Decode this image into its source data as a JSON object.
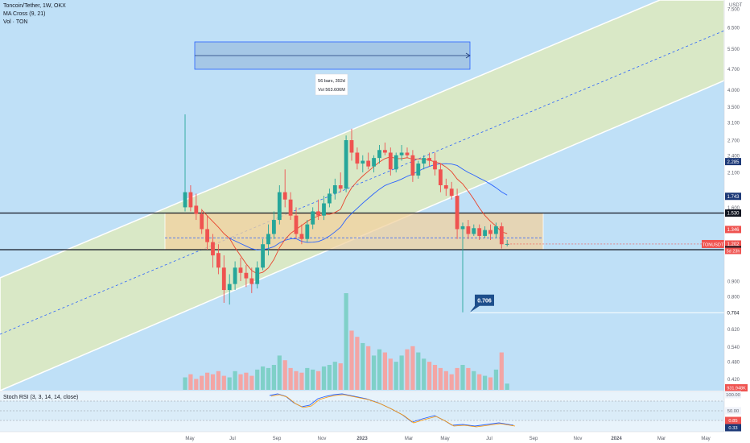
{
  "header": {
    "symbol_line": "Toncoin/Tether, 1W, OKX",
    "indicator_1": "MA Cross (9, 21)",
    "indicator_2": "Vol · TON",
    "rsi_label": "Stoch RSI (3, 3, 14, 14, close)",
    "unit": "USDT"
  },
  "colors": {
    "up": "#26a69a",
    "down": "#ef5350",
    "channel_fill": "#d9e8c6",
    "plot_bg": "#bfe0f7",
    "zone_fill": "#f1d29f",
    "ma_fast": "#e8452e",
    "ma_slow": "#2962ff",
    "rsi_k": "#2962ff",
    "rsi_d": "#ff9800"
  },
  "chart_data": {
    "type": "candlestick",
    "log_scale": true,
    "ylim": [
      0.34,
      8.5
    ],
    "price_axis_ticks": [
      "7.500",
      "6.500",
      "5.500",
      "4.700",
      "4.000",
      "3.500",
      "3.100",
      "2.700",
      "2.400",
      "2.100",
      "1.600",
      "1.350",
      "0.900",
      "0.800",
      "0.620",
      "0.540",
      "0.480",
      "0.420",
      "0.370"
    ],
    "time_axis_ticks": [
      "May",
      "Jul",
      "Sep",
      "Nov",
      "2023",
      "Mar",
      "May",
      "Jul",
      "Sep",
      "Nov",
      "2024",
      "Mar",
      "May"
    ],
    "horizontal_levels": [
      1.53,
      1.15,
      0.704
    ],
    "price_labels": [
      {
        "value": 7.5,
        "text": "7.500",
        "color": "#f0f3fa",
        "fg": "#5d606b",
        "y": 7.5
      },
      {
        "value": 2.285,
        "text": "2.285",
        "color": "#1e3a78",
        "fg": "#ffffff",
        "y": 2.285
      },
      {
        "value": 1.743,
        "text": "1.743",
        "color": "#1e3a78",
        "fg": "#ffffff",
        "y": 1.743
      },
      {
        "value": 1.53,
        "text": "1.530",
        "color": "#131722",
        "fg": "#ffffff",
        "y": 1.53
      },
      {
        "value": 1.346,
        "text": "1.346",
        "color": "#ef5350",
        "fg": "#ffffff",
        "y": 1.346
      },
      {
        "value": 1.202,
        "text": "1.202",
        "color": "#ef5350",
        "fg": "#ffffff",
        "y": 1.202
      },
      {
        "value": 1.15,
        "text": "1.150",
        "color": "#131722",
        "fg": "#ffffff",
        "y": 1.15
      },
      {
        "value": 0.704,
        "text": "0.704",
        "color": "#ffffff",
        "fg": "#131722",
        "y": 0.704
      }
    ],
    "symbol_tag": "TONUSDT",
    "countdown_tag": "5d 23h",
    "volume_tag": "931.948K",
    "annotation_box": {
      "line1": "56 bars, 392d",
      "line2": "Vol 563.606M"
    },
    "callout": "0.706",
    "rsi_levels": [
      "100.00",
      "50.00",
      "0.85",
      "0.33"
    ],
    "candles": [
      {
        "o": 1.6,
        "h": 3.3,
        "l": 1.55,
        "c": 1.8
      },
      {
        "o": 1.8,
        "h": 1.9,
        "l": 1.55,
        "c": 1.6
      },
      {
        "o": 1.62,
        "h": 1.78,
        "l": 1.45,
        "c": 1.52
      },
      {
        "o": 1.52,
        "h": 1.58,
        "l": 1.3,
        "c": 1.35
      },
      {
        "o": 1.35,
        "h": 1.5,
        "l": 1.15,
        "c": 1.22
      },
      {
        "o": 1.22,
        "h": 1.3,
        "l": 1.0,
        "c": 1.1
      },
      {
        "o": 1.12,
        "h": 1.2,
        "l": 0.95,
        "c": 1.0
      },
      {
        "o": 1.0,
        "h": 1.1,
        "l": 0.76,
        "c": 0.84
      },
      {
        "o": 0.84,
        "h": 0.95,
        "l": 0.75,
        "c": 0.88
      },
      {
        "o": 0.88,
        "h": 1.05,
        "l": 0.84,
        "c": 1.0
      },
      {
        "o": 1.0,
        "h": 1.08,
        "l": 0.9,
        "c": 0.96
      },
      {
        "o": 0.96,
        "h": 1.02,
        "l": 0.86,
        "c": 0.92
      },
      {
        "o": 0.92,
        "h": 1.0,
        "l": 0.82,
        "c": 0.88
      },
      {
        "o": 0.88,
        "h": 1.05,
        "l": 0.85,
        "c": 1.0
      },
      {
        "o": 1.0,
        "h": 1.25,
        "l": 0.98,
        "c": 1.2
      },
      {
        "o": 1.2,
        "h": 1.4,
        "l": 1.1,
        "c": 1.3
      },
      {
        "o": 1.3,
        "h": 1.55,
        "l": 1.25,
        "c": 1.45
      },
      {
        "o": 1.45,
        "h": 1.9,
        "l": 1.4,
        "c": 1.8
      },
      {
        "o": 1.8,
        "h": 2.15,
        "l": 1.6,
        "c": 1.7
      },
      {
        "o": 1.7,
        "h": 1.8,
        "l": 1.45,
        "c": 1.5
      },
      {
        "o": 1.5,
        "h": 1.6,
        "l": 1.25,
        "c": 1.3
      },
      {
        "o": 1.3,
        "h": 1.4,
        "l": 1.2,
        "c": 1.25
      },
      {
        "o": 1.25,
        "h": 1.45,
        "l": 1.22,
        "c": 1.4
      },
      {
        "o": 1.4,
        "h": 1.6,
        "l": 1.35,
        "c": 1.55
      },
      {
        "o": 1.55,
        "h": 1.7,
        "l": 1.45,
        "c": 1.5
      },
      {
        "o": 1.5,
        "h": 1.75,
        "l": 1.45,
        "c": 1.65
      },
      {
        "o": 1.65,
        "h": 1.85,
        "l": 1.6,
        "c": 1.78
      },
      {
        "o": 1.78,
        "h": 2.0,
        "l": 1.7,
        "c": 1.9
      },
      {
        "o": 1.9,
        "h": 2.1,
        "l": 1.8,
        "c": 1.85
      },
      {
        "o": 1.85,
        "h": 2.8,
        "l": 1.8,
        "c": 2.7
      },
      {
        "o": 2.7,
        "h": 2.95,
        "l": 2.3,
        "c": 2.45
      },
      {
        "o": 2.45,
        "h": 2.55,
        "l": 2.15,
        "c": 2.25
      },
      {
        "o": 2.25,
        "h": 2.4,
        "l": 2.1,
        "c": 2.3
      },
      {
        "o": 2.3,
        "h": 2.45,
        "l": 2.15,
        "c": 2.2
      },
      {
        "o": 2.2,
        "h": 2.4,
        "l": 2.1,
        "c": 2.35
      },
      {
        "o": 2.35,
        "h": 2.6,
        "l": 2.25,
        "c": 2.5
      },
      {
        "o": 2.5,
        "h": 2.65,
        "l": 2.4,
        "c": 2.45
      },
      {
        "o": 2.45,
        "h": 2.55,
        "l": 2.05,
        "c": 2.15
      },
      {
        "o": 2.15,
        "h": 2.45,
        "l": 2.1,
        "c": 2.4
      },
      {
        "o": 2.4,
        "h": 2.6,
        "l": 2.3,
        "c": 2.45
      },
      {
        "o": 2.45,
        "h": 2.55,
        "l": 2.35,
        "c": 2.4
      },
      {
        "o": 2.4,
        "h": 2.5,
        "l": 1.95,
        "c": 2.05
      },
      {
        "o": 2.05,
        "h": 2.3,
        "l": 2.0,
        "c": 2.25
      },
      {
        "o": 2.25,
        "h": 2.4,
        "l": 2.15,
        "c": 2.35
      },
      {
        "o": 2.35,
        "h": 2.45,
        "l": 2.2,
        "c": 2.3
      },
      {
        "o": 2.3,
        "h": 2.45,
        "l": 2.05,
        "c": 2.15
      },
      {
        "o": 2.15,
        "h": 2.25,
        "l": 1.8,
        "c": 1.9
      },
      {
        "o": 1.9,
        "h": 2.0,
        "l": 1.75,
        "c": 1.85
      },
      {
        "o": 1.85,
        "h": 1.95,
        "l": 1.7,
        "c": 1.75
      },
      {
        "o": 1.75,
        "h": 1.85,
        "l": 1.25,
        "c": 1.35
      },
      {
        "o": 1.35,
        "h": 1.42,
        "l": 0.706,
        "c": 1.38
      },
      {
        "o": 1.38,
        "h": 1.45,
        "l": 1.25,
        "c": 1.3
      },
      {
        "o": 1.3,
        "h": 1.4,
        "l": 1.28,
        "c": 1.36
      },
      {
        "o": 1.36,
        "h": 1.4,
        "l": 1.24,
        "c": 1.28
      },
      {
        "o": 1.28,
        "h": 1.38,
        "l": 1.26,
        "c": 1.34
      },
      {
        "o": 1.34,
        "h": 1.4,
        "l": 1.24,
        "c": 1.3
      },
      {
        "o": 1.3,
        "h": 1.42,
        "l": 1.26,
        "c": 1.38
      },
      {
        "o": 1.38,
        "h": 1.42,
        "l": 1.16,
        "c": 1.2
      },
      {
        "o": 1.2,
        "h": 1.24,
        "l": 1.18,
        "c": 1.202
      }
    ],
    "volume": [
      8,
      10,
      7,
      9,
      11,
      10,
      12,
      9,
      8,
      12,
      10,
      11,
      9,
      13,
      15,
      14,
      16,
      22,
      19,
      14,
      12,
      11,
      14,
      13,
      12,
      15,
      16,
      18,
      17,
      62,
      38,
      34,
      30,
      28,
      22,
      26,
      24,
      20,
      18,
      22,
      26,
      28,
      24,
      20,
      18,
      16,
      14,
      12,
      10,
      14,
      16,
      14,
      12,
      10,
      9,
      8,
      13,
      24,
      4
    ]
  }
}
